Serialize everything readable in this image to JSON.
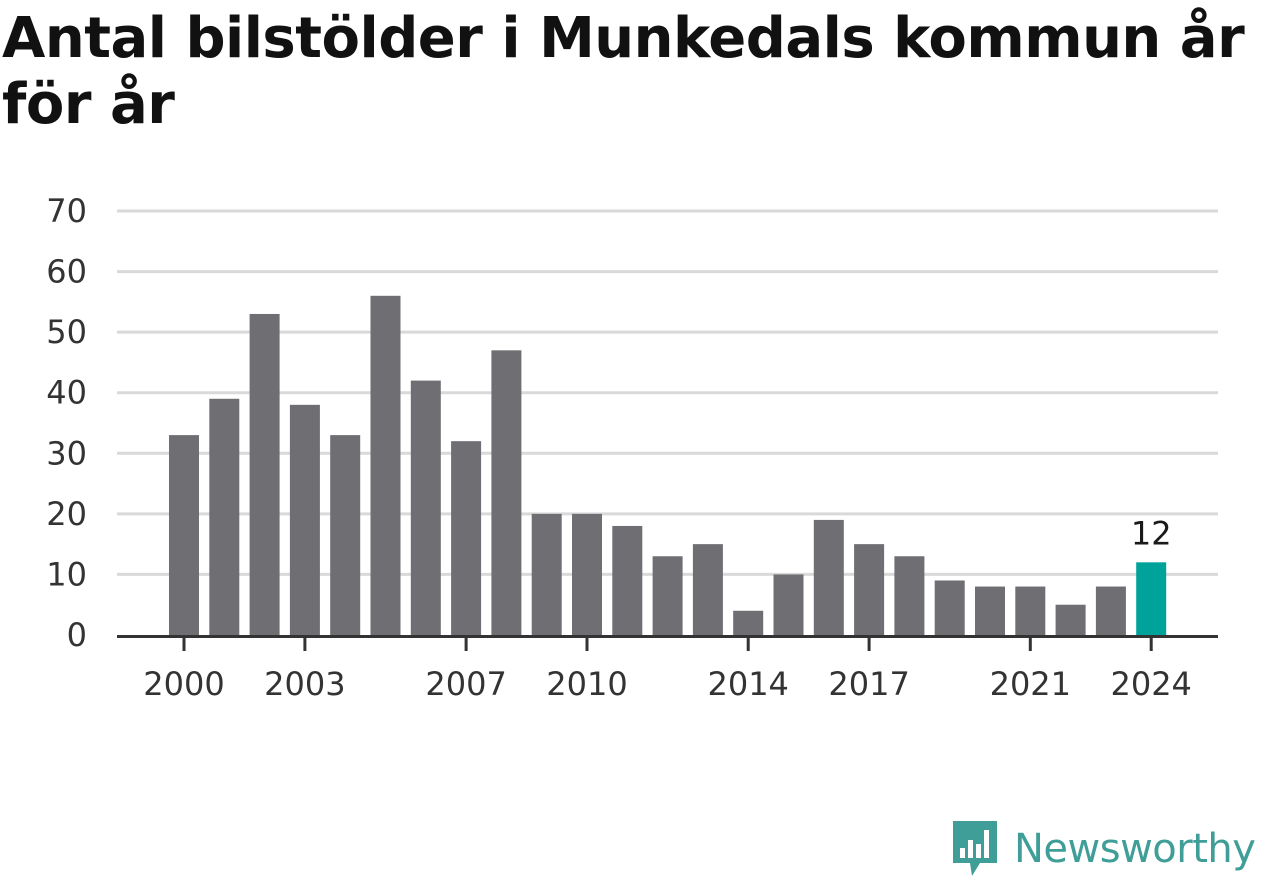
{
  "title": "Antal bilstölder i Munkedals kommun år för år",
  "brand": {
    "name": "Newsworthy",
    "icon": "newsworthy-logo-icon",
    "color": "#3f9e97"
  },
  "colors": {
    "bar": "#6e6e73",
    "highlight": "#00a39a",
    "grid": "#d9d9d9",
    "axis": "#333333"
  },
  "chart_data": {
    "type": "bar",
    "title": "Antal bilstölder i Munkedals kommun år för år",
    "xlabel": "",
    "ylabel": "",
    "categories": [
      2000,
      2001,
      2002,
      2003,
      2004,
      2005,
      2006,
      2007,
      2008,
      2009,
      2010,
      2011,
      2012,
      2013,
      2014,
      2015,
      2016,
      2017,
      2018,
      2019,
      2020,
      2021,
      2022,
      2023,
      2024
    ],
    "values": [
      33,
      39,
      53,
      38,
      33,
      56,
      42,
      32,
      47,
      20,
      20,
      18,
      13,
      15,
      4,
      10,
      19,
      15,
      13,
      9,
      8,
      8,
      5,
      8,
      12
    ],
    "ylim": [
      0,
      70
    ],
    "yticks": [
      0,
      10,
      20,
      30,
      40,
      50,
      60,
      70
    ],
    "xtick_labels": [
      2000,
      2003,
      2007,
      2010,
      2014,
      2017,
      2021,
      2024
    ],
    "highlight": {
      "category": 2024,
      "label": "12"
    },
    "grid": true,
    "legend": "none"
  }
}
